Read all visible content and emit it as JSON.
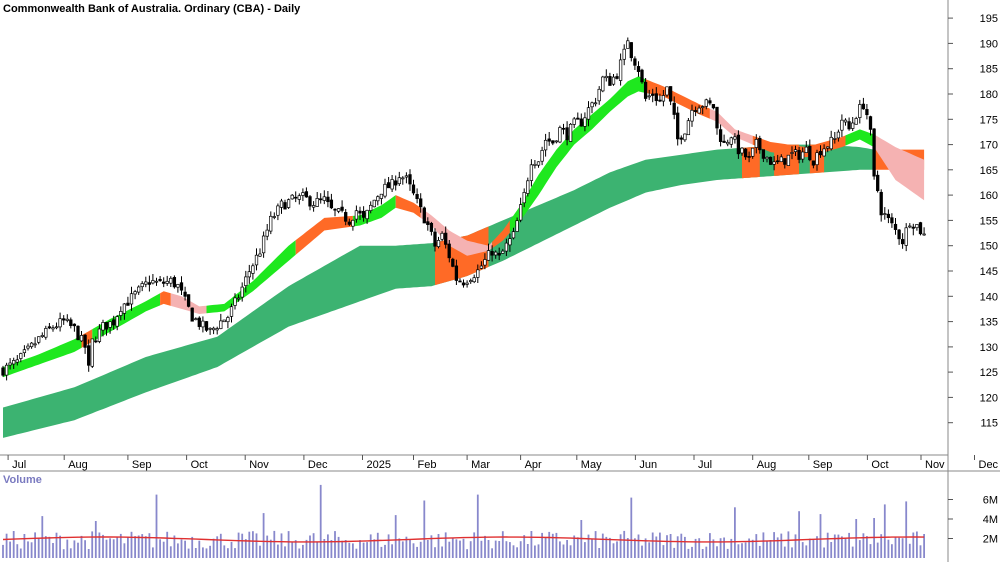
{
  "chart_data": [
    {
      "type": "candlestick",
      "title": "Commonwealth Bank of Australia. Ordinary (CBA) - Daily",
      "ylim": [
        110,
        197
      ],
      "yticks": [
        195,
        190,
        185,
        180,
        175,
        170,
        165,
        160,
        155,
        150,
        145,
        140,
        135,
        130,
        125,
        120,
        115
      ],
      "xtick_labels": [
        "Jul",
        "Aug",
        "Sep",
        "Oct",
        "Nov",
        "Dec",
        "2025",
        "Feb",
        "Mar",
        "Apr",
        "May",
        "Jun",
        "Jul",
        "Aug",
        "Sep",
        "Oct",
        "Nov",
        "Dec"
      ],
      "price_path": [
        [
          0,
          125.5
        ],
        [
          4,
          127
        ],
        [
          8,
          130
        ],
        [
          10,
          131.5
        ],
        [
          14,
          134
        ],
        [
          17,
          135
        ],
        [
          20,
          133.5
        ],
        [
          23,
          130
        ],
        [
          24,
          125.5
        ],
        [
          25,
          131
        ],
        [
          28,
          134
        ],
        [
          31,
          135
        ],
        [
          33,
          138
        ],
        [
          35,
          139
        ],
        [
          38,
          141
        ],
        [
          41,
          143
        ],
        [
          44,
          142.5
        ],
        [
          47,
          143
        ],
        [
          49,
          142
        ],
        [
          51,
          139
        ],
        [
          53,
          136
        ],
        [
          56,
          134
        ],
        [
          58,
          133
        ],
        [
          61,
          135
        ],
        [
          63,
          136
        ],
        [
          66,
          140
        ],
        [
          69,
          145
        ],
        [
          72,
          149
        ],
        [
          75,
          155
        ],
        [
          78,
          158
        ],
        [
          81,
          159
        ],
        [
          84,
          159.5
        ],
        [
          87,
          158.5
        ],
        [
          90,
          159
        ],
        [
          92,
          157
        ],
        [
          95,
          156
        ],
        [
          97,
          155
        ],
        [
          99,
          157
        ],
        [
          101,
          155
        ],
        [
          104,
          159
        ],
        [
          106,
          161
        ],
        [
          109,
          162
        ],
        [
          111,
          164
        ],
        [
          113,
          163
        ],
        [
          115,
          160
        ],
        [
          117,
          157
        ],
        [
          119,
          154
        ],
        [
          121,
          150
        ],
        [
          123,
          152
        ],
        [
          125,
          148
        ],
        [
          127,
          143.5
        ],
        [
          129,
          143
        ],
        [
          131,
          144
        ],
        [
          133,
          145
        ],
        [
          135,
          147
        ],
        [
          137,
          149
        ],
        [
          139,
          147.5
        ],
        [
          141,
          150
        ],
        [
          143,
          152
        ],
        [
          146,
          160
        ],
        [
          148,
          167
        ],
        [
          150,
          167
        ],
        [
          152,
          171
        ],
        [
          154,
          170.5
        ],
        [
          156,
          173
        ],
        [
          158,
          172
        ],
        [
          160,
          174
        ],
        [
          162,
          174.5
        ],
        [
          164,
          177
        ],
        [
          166,
          179
        ],
        [
          168,
          183
        ],
        [
          170,
          182.5
        ],
        [
          172,
          184
        ],
        [
          174,
          188
        ],
        [
          175,
          191
        ],
        [
          176,
          188
        ],
        [
          178,
          185
        ],
        [
          180,
          179
        ],
        [
          182,
          180
        ],
        [
          184,
          178.5
        ],
        [
          186,
          181
        ],
        [
          188,
          175
        ],
        [
          189,
          171
        ],
        [
          191,
          173
        ],
        [
          193,
          177
        ],
        [
          195,
          178
        ],
        [
          197,
          178
        ],
        [
          199,
          177.5
        ],
        [
          200,
          173
        ],
        [
          202,
          170
        ],
        [
          204,
          172
        ],
        [
          206,
          169
        ],
        [
          209,
          167
        ],
        [
          211,
          170
        ],
        [
          214,
          167.5
        ],
        [
          216,
          166
        ],
        [
          219,
          167
        ],
        [
          221,
          168
        ],
        [
          223,
          168
        ],
        [
          225,
          169
        ],
        [
          227,
          167
        ],
        [
          229,
          169
        ],
        [
          231,
          170
        ],
        [
          233,
          171
        ],
        [
          235,
          175
        ],
        [
          237,
          173
        ],
        [
          239,
          176
        ],
        [
          241,
          178
        ],
        [
          242,
          176
        ],
        [
          243,
          172
        ],
        [
          244,
          163
        ],
        [
          245,
          161
        ],
        [
          246,
          157
        ],
        [
          248,
          155
        ],
        [
          250,
          153
        ],
        [
          252,
          151
        ],
        [
          254,
          155
        ],
        [
          256,
          154
        ],
        [
          258,
          152
        ]
      ],
      "bands": {
        "long_average_upper": [
          [
            0,
            118
          ],
          [
            20,
            122
          ],
          [
            40,
            128
          ],
          [
            60,
            132
          ],
          [
            80,
            142
          ],
          [
            100,
            150
          ],
          [
            110,
            150
          ],
          [
            120,
            150.5
          ],
          [
            130,
            152
          ],
          [
            140,
            155
          ],
          [
            150,
            158
          ],
          [
            160,
            161
          ],
          [
            170,
            164.5
          ],
          [
            180,
            167
          ],
          [
            190,
            168
          ],
          [
            200,
            169
          ],
          [
            210,
            169.5
          ],
          [
            220,
            170
          ],
          [
            230,
            170
          ],
          [
            240,
            169.5
          ],
          [
            244,
            169
          ]
        ],
        "long_average_lower": [
          [
            0,
            112
          ],
          [
            20,
            115.5
          ],
          [
            40,
            121
          ],
          [
            60,
            126
          ],
          [
            80,
            134
          ],
          [
            100,
            139
          ],
          [
            110,
            141.5
          ],
          [
            120,
            142
          ],
          [
            130,
            144
          ],
          [
            140,
            147
          ],
          [
            150,
            150.5
          ],
          [
            160,
            154
          ],
          [
            170,
            157.5
          ],
          [
            180,
            160.5
          ],
          [
            190,
            162
          ],
          [
            200,
            163
          ],
          [
            210,
            163.5
          ],
          [
            220,
            164
          ],
          [
            230,
            164.5
          ],
          [
            240,
            165
          ],
          [
            244,
            165
          ],
          [
            250,
            165
          ]
        ],
        "short_average_upper": [
          [
            0,
            126
          ],
          [
            10,
            128.5
          ],
          [
            20,
            131.5
          ],
          [
            30,
            135.5
          ],
          [
            40,
            139
          ],
          [
            45,
            141
          ],
          [
            50,
            140
          ],
          [
            55,
            138
          ],
          [
            62,
            138.5
          ],
          [
            70,
            143
          ],
          [
            80,
            150
          ],
          [
            90,
            155.5
          ],
          [
            100,
            156
          ],
          [
            106,
            158
          ],
          [
            110,
            160
          ],
          [
            115,
            158.5
          ],
          [
            120,
            156
          ],
          [
            125,
            153
          ],
          [
            130,
            151
          ],
          [
            136,
            150
          ],
          [
            140,
            153
          ],
          [
            145,
            158
          ],
          [
            150,
            164
          ],
          [
            155,
            169
          ],
          [
            160,
            173
          ],
          [
            165,
            176
          ],
          [
            170,
            179
          ],
          [
            175,
            182.5
          ],
          [
            178,
            183.5
          ],
          [
            185,
            181.5
          ],
          [
            195,
            178
          ],
          [
            200,
            176.5
          ],
          [
            205,
            173
          ],
          [
            215,
            170.5
          ],
          [
            225,
            169.5
          ],
          [
            235,
            171.5
          ],
          [
            240,
            173
          ],
          [
            244,
            172
          ],
          [
            250,
            169.5
          ],
          [
            258,
            167
          ]
        ],
        "short_average_lower": [
          [
            0,
            124
          ],
          [
            10,
            126.5
          ],
          [
            20,
            129
          ],
          [
            30,
            133
          ],
          [
            40,
            137
          ],
          [
            45,
            138.5
          ],
          [
            50,
            137.5
          ],
          [
            55,
            136.5
          ],
          [
            62,
            137
          ],
          [
            70,
            141
          ],
          [
            80,
            147
          ],
          [
            90,
            153
          ],
          [
            100,
            154
          ],
          [
            106,
            155.5
          ],
          [
            110,
            157.5
          ],
          [
            115,
            156.5
          ],
          [
            120,
            154
          ],
          [
            125,
            150
          ],
          [
            130,
            148
          ],
          [
            136,
            149
          ],
          [
            140,
            151
          ],
          [
            145,
            155
          ],
          [
            150,
            160
          ],
          [
            155,
            165.5
          ],
          [
            160,
            170
          ],
          [
            165,
            173
          ],
          [
            170,
            176.5
          ],
          [
            175,
            179.5
          ],
          [
            178,
            180.5
          ],
          [
            185,
            179.5
          ],
          [
            195,
            176
          ],
          [
            200,
            174.5
          ],
          [
            205,
            171.5
          ],
          [
            215,
            168.5
          ],
          [
            225,
            167.5
          ],
          [
            235,
            169.5
          ],
          [
            240,
            171
          ],
          [
            244,
            169.5
          ],
          [
            250,
            163
          ],
          [
            258,
            159
          ]
        ]
      }
    },
    {
      "type": "bar",
      "title": "Volume",
      "yticks": [
        "6M",
        "4M",
        "2M"
      ],
      "ylim": [
        0,
        8
      ],
      "average_level": 2
    }
  ],
  "colors": {
    "background": "#ffffff",
    "long_band_fill": "#3cb371",
    "long_band_bearish": "#ff6a26",
    "short_band_up": "#1ee81e",
    "short_band_down": "#ff6a26",
    "short_band_fading": "#f5b2b2",
    "candle": "#000000",
    "volume_bars": "#8888cc",
    "volume_average": "#e03030",
    "axis_text": "#000000",
    "volume_label": "#7a7ac0"
  }
}
